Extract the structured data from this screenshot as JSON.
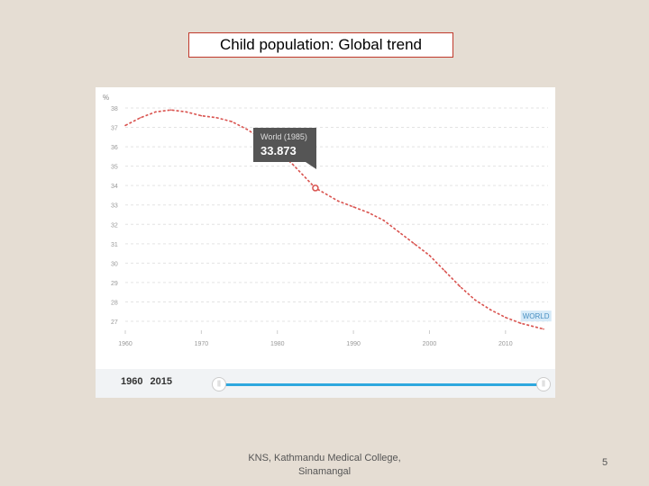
{
  "page": {
    "title": "Child population: Global trend",
    "footer": "KNS, Kathmandu Medical College, Sinamangal",
    "page_number": "5"
  },
  "chart_data": {
    "type": "line",
    "unit_label": "%",
    "x_ticks": [
      "1960",
      "1970",
      "1980",
      "1990",
      "2000",
      "2010"
    ],
    "y_ticks": [
      27,
      28,
      29,
      30,
      31,
      32,
      33,
      34,
      35,
      36,
      37,
      38
    ],
    "ylim": [
      27,
      38
    ],
    "xlim": [
      1960,
      2015
    ],
    "grid": true,
    "line_color": "#d9534f",
    "series": [
      {
        "name": "WORLD",
        "x": [
          1960,
          1962,
          1964,
          1966,
          1968,
          1970,
          1972,
          1974,
          1976,
          1978,
          1980,
          1982,
          1985,
          1988,
          1990,
          1992,
          1994,
          1996,
          1998,
          2000,
          2002,
          2004,
          2006,
          2008,
          2010,
          2012,
          2015
        ],
        "y": [
          37.1,
          37.5,
          37.8,
          37.9,
          37.8,
          37.6,
          37.5,
          37.3,
          36.9,
          36.4,
          35.8,
          35.1,
          33.873,
          33.2,
          32.9,
          32.6,
          32.2,
          31.6,
          31.0,
          30.4,
          29.6,
          28.8,
          28.1,
          27.6,
          27.2,
          26.9,
          26.6
        ]
      }
    ],
    "tooltip": {
      "label": "World (1985)",
      "value": "33.873"
    },
    "slider": {
      "start": "1960",
      "end": "2015"
    }
  }
}
